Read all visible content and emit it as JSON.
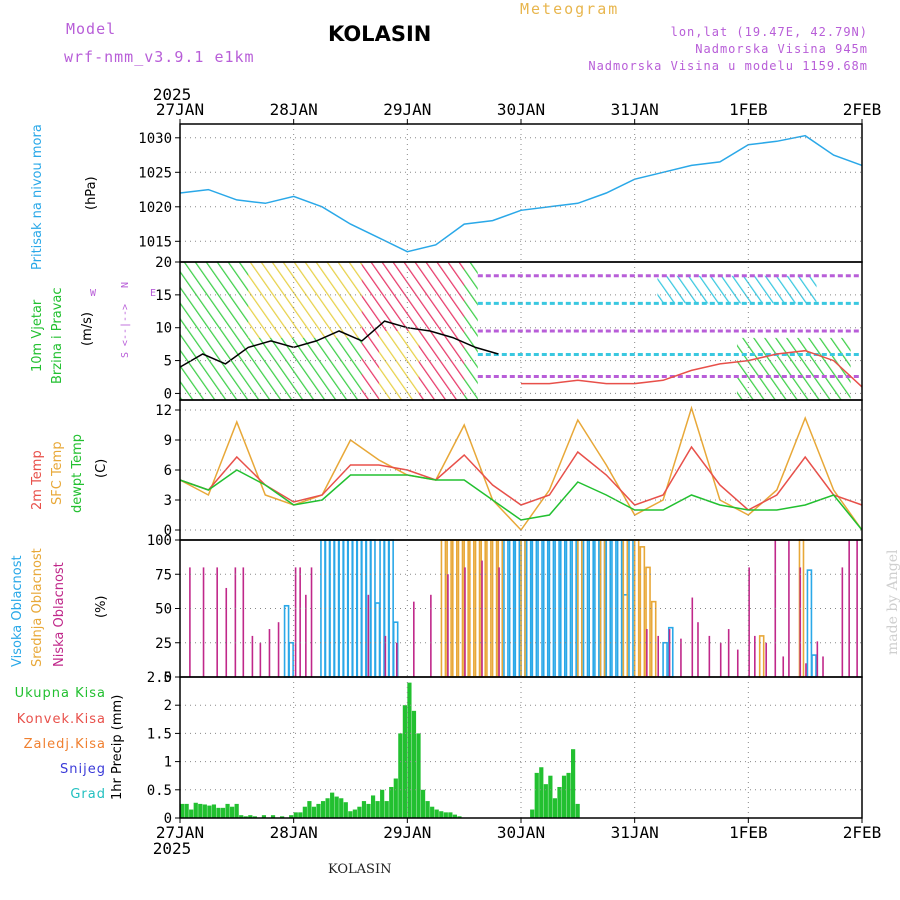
{
  "header": {
    "model_label": "Model",
    "model_name": "wrf-nmm_v3.9.1 e1km",
    "location": "KOLASIN",
    "title": "Meteogram",
    "coords": "lon,lat (19.47E, 42.79N)",
    "elevation": "Nadmorska Visina 945m",
    "model_elevation": "Nadmorska Visina u modelu 1159.68m"
  },
  "footer": {
    "location": "KOLASIN",
    "credit": "made by Angel"
  },
  "colors": {
    "pressure": "#2aa8e8",
    "wind_label": "#22c030",
    "temp": "#e8504a",
    "sfc": "#e8a838",
    "dewpt": "#22c030",
    "high_cloud": "#2aa8e8",
    "mid_cloud": "#e8a838",
    "low_cloud": "#c0288a",
    "total_rain": "#22c030",
    "conv_rain": "#e8504a",
    "freez_rain": "#f08030",
    "snow": "#3a3ad8",
    "hail": "#22c0c0",
    "wind_dir": "#b85ed8"
  },
  "chart_data": [
    {
      "type": "line",
      "panel": "pressure",
      "year": "2025",
      "x_tick_labels": [
        "27JAN",
        "28JAN",
        "29JAN",
        "30JAN",
        "31JAN",
        "1FEB",
        "2FEB"
      ],
      "ylabel_name": "Pritisak na nivou mora",
      "ylabel_unit": "(hPa)",
      "yticks": [
        1015,
        1020,
        1025,
        1030
      ],
      "ylim": [
        1012,
        1032
      ],
      "grid": true,
      "series": [
        {
          "color": "#2aa8e8",
          "x": [
            0,
            0.25,
            0.5,
            0.75,
            1.0,
            1.25,
            1.5,
            1.75,
            2.0,
            2.25,
            2.5,
            2.75,
            3.0,
            3.25,
            3.5,
            3.75,
            4.0,
            4.25,
            4.5,
            4.75,
            5.0,
            5.25,
            5.5,
            5.75,
            6.0
          ],
          "y": [
            1022,
            1022.5,
            1021,
            1020.5,
            1021.5,
            1020,
            1017.5,
            1015.5,
            1013.5,
            1014.5,
            1017.5,
            1018,
            1019.5,
            1020,
            1020.5,
            1022,
            1024,
            1025,
            1026,
            1026.5,
            1029,
            1029.5,
            1030.3,
            1027.5,
            1026
          ]
        }
      ]
    },
    {
      "type": "line",
      "panel": "wind",
      "ylabel_name": "10m Vjetar",
      "ylabel_name2": "Brzina i Pravac",
      "ylabel_unit": "(m/s)",
      "direction_key": [
        "N",
        "W",
        "<--|-->",
        "E",
        "S"
      ],
      "yticks": [
        0,
        5,
        10,
        15,
        20
      ],
      "ylim": [
        -1,
        20
      ],
      "grid": true,
      "series": [
        {
          "color": "#000000",
          "x": [
            0,
            0.2,
            0.4,
            0.6,
            0.8,
            1.0,
            1.2,
            1.4,
            1.6,
            1.8,
            2.0,
            2.2,
            2.4,
            2.6,
            2.8
          ],
          "y": [
            4,
            6,
            4.5,
            7,
            8,
            7,
            8,
            9.5,
            8,
            11,
            10,
            9.5,
            8.5,
            7,
            6
          ]
        },
        {
          "color": "#e8504a",
          "x": [
            3.0,
            3.25,
            3.5,
            3.75,
            4.0,
            4.25,
            4.5,
            4.75,
            5.0,
            5.25,
            5.5,
            5.75,
            6.0
          ],
          "y": [
            1.5,
            1.5,
            2,
            1.5,
            1.5,
            2,
            3.5,
            4.5,
            5,
            6,
            6.5,
            5,
            1
          ]
        }
      ]
    },
    {
      "type": "line",
      "panel": "temperature",
      "ylabel_names": [
        "2m Temp",
        "SFC Temp",
        "dewpt Temp"
      ],
      "ylabel_unit": "(C)",
      "yticks": [
        0,
        3,
        6,
        9,
        12
      ],
      "ylim": [
        -1,
        13
      ],
      "grid": true,
      "series": [
        {
          "color": "#e8a838",
          "x": [
            0,
            0.25,
            0.5,
            0.75,
            1.0,
            1.25,
            1.5,
            1.75,
            2.0,
            2.25,
            2.5,
            2.75,
            3.0,
            3.25,
            3.5,
            3.75,
            4.0,
            4.25,
            4.5,
            4.75,
            5.0,
            5.25,
            5.5,
            5.75,
            6.0
          ],
          "y": [
            5,
            3.5,
            10.8,
            3.5,
            2.5,
            3.5,
            9,
            7,
            5.5,
            5,
            10.5,
            3,
            0,
            4,
            11,
            6.5,
            1.5,
            3,
            12.2,
            3,
            1.5,
            4,
            11.2,
            4,
            0
          ]
        },
        {
          "color": "#e8504a",
          "x": [
            0,
            0.25,
            0.5,
            0.75,
            1.0,
            1.25,
            1.5,
            1.75,
            2.0,
            2.25,
            2.5,
            2.75,
            3.0,
            3.25,
            3.5,
            3.75,
            4.0,
            4.25,
            4.5,
            4.75,
            5.0,
            5.25,
            5.5,
            5.75,
            6.0
          ],
          "y": [
            5,
            4,
            7.3,
            4.5,
            2.8,
            3.5,
            6.5,
            6.5,
            6,
            5,
            7.5,
            4.5,
            2.5,
            3.5,
            7.8,
            5.5,
            2.5,
            3.5,
            8.3,
            4.5,
            2,
            3.5,
            7.3,
            3.5,
            2.5
          ]
        },
        {
          "color": "#22c030",
          "x": [
            0,
            0.25,
            0.5,
            0.75,
            1.0,
            1.25,
            1.5,
            1.75,
            2.0,
            2.25,
            2.5,
            2.75,
            3.0,
            3.25,
            3.5,
            3.75,
            4.0,
            4.25,
            4.5,
            4.75,
            5.0,
            5.25,
            5.5,
            5.75,
            6.0
          ],
          "y": [
            5,
            4,
            6,
            4.5,
            2.5,
            3,
            5.5,
            5.5,
            5.5,
            5,
            5,
            3,
            1,
            1.5,
            4.8,
            3.5,
            2,
            2,
            3.5,
            2.5,
            2,
            2,
            2.5,
            3.5,
            0
          ]
        }
      ]
    },
    {
      "type": "bar",
      "panel": "clouds",
      "ylabel_names": [
        "Visoka Oblacnost",
        "Srednja Oblacnost",
        "Niska Oblacnost"
      ],
      "ylabel_unit": "(%)",
      "yticks": [
        0,
        25,
        50,
        75,
        100
      ],
      "ylim": [
        0,
        100
      ],
      "grid": true,
      "series": [
        {
          "name": "Visoka Oblacnost",
          "color": "#2aa8e8",
          "x": [
            0.92,
            0.96,
            1.24,
            1.28,
            1.32,
            1.36,
            1.4,
            1.44,
            1.48,
            1.52,
            1.56,
            1.6,
            1.64,
            1.68,
            1.72,
            1.76,
            1.8,
            1.84,
            1.88,
            2.85,
            2.9,
            2.95,
            3.0,
            3.05,
            3.1,
            3.15,
            3.2,
            3.25,
            3.3,
            3.35,
            3.4,
            3.45,
            3.5,
            3.55,
            3.6,
            3.65,
            3.7,
            3.75,
            3.8,
            3.85,
            3.9,
            3.95,
            4.25,
            4.3,
            5.52,
            5.56
          ],
          "values": [
            52,
            25,
            100,
            100,
            100,
            100,
            100,
            100,
            100,
            100,
            100,
            100,
            100,
            100,
            54,
            100,
            100,
            100,
            40,
            100,
            100,
            100,
            100,
            100,
            100,
            100,
            100,
            100,
            100,
            100,
            100,
            100,
            100,
            100,
            100,
            100,
            100,
            100,
            100,
            100,
            60,
            100,
            25,
            36,
            78,
            16
          ]
        },
        {
          "name": "Srednja Oblacnost",
          "color": "#e8a838",
          "x": [
            2.3,
            2.35,
            2.4,
            2.45,
            2.5,
            2.55,
            2.6,
            2.65,
            2.7,
            2.75,
            2.8,
            3.0,
            3.5,
            3.7,
            3.9,
            4.0,
            4.05,
            4.1,
            4.15,
            5.1,
            5.45
          ],
          "values": [
            100,
            100,
            100,
            100,
            100,
            100,
            100,
            100,
            100,
            100,
            100,
            100,
            100,
            100,
            100,
            100,
            95,
            80,
            55,
            30,
            100
          ]
        },
        {
          "name": "Niska Oblacnost",
          "color": "#c0288a",
          "x": [
            0.08,
            0.2,
            0.32,
            0.4,
            0.48,
            0.55,
            0.63,
            0.7,
            0.78,
            0.86,
            1.01,
            1.05,
            1.1,
            1.15,
            1.65,
            1.8,
            1.9,
            2.05,
            2.2,
            2.35,
            2.5,
            2.65,
            2.8,
            4.1,
            4.2,
            4.3,
            4.4,
            4.5,
            4.55,
            4.65,
            4.75,
            4.82,
            4.9,
            5.0,
            5.05,
            5.15,
            5.23,
            5.3,
            5.35,
            5.45,
            5.5,
            5.6,
            5.65,
            5.82,
            5.88,
            5.95
          ],
          "values": [
            80,
            80,
            80,
            65,
            80,
            80,
            30,
            25,
            35,
            40,
            80,
            80,
            60,
            80,
            60,
            30,
            25,
            55,
            60,
            75,
            80,
            85,
            80,
            35,
            30,
            35,
            28,
            58,
            40,
            30,
            25,
            35,
            20,
            80,
            30,
            25,
            100,
            15,
            100,
            80,
            10,
            26,
            15,
            80,
            100,
            100
          ]
        }
      ]
    },
    {
      "type": "bar",
      "panel": "precip",
      "ylabel_name": "1hr Precip (mm)",
      "legend": [
        "Ukupna Kisa",
        "Konvek.Kisa",
        "Zaledj.Kisa",
        "Snijeg",
        "Grad"
      ],
      "yticks": [
        0,
        0.5,
        1,
        1.5,
        2,
        2.5
      ],
      "ytick_labels": [
        "0",
        "0.5",
        "1",
        "1.5",
        "2",
        "2.5"
      ],
      "ylim": [
        0,
        2.5
      ],
      "grid": true,
      "year": "2025",
      "x_tick_labels": [
        "27JAN",
        "28JAN",
        "29JAN",
        "30JAN",
        "31JAN",
        "1FEB",
        "2FEB"
      ],
      "series": [
        {
          "name": "Ukupna Kisa",
          "color": "#22c030",
          "x": [
            0.0,
            0.04,
            0.08,
            0.12,
            0.16,
            0.2,
            0.24,
            0.28,
            0.32,
            0.36,
            0.4,
            0.44,
            0.48,
            0.52,
            0.56,
            0.6,
            0.64,
            0.72,
            0.8,
            0.88,
            0.96,
            1.0,
            1.04,
            1.08,
            1.12,
            1.16,
            1.2,
            1.24,
            1.28,
            1.32,
            1.36,
            1.4,
            1.44,
            1.48,
            1.52,
            1.56,
            1.6,
            1.64,
            1.68,
            1.72,
            1.76,
            1.8,
            1.84,
            1.88,
            1.92,
            1.96,
            2.0,
            2.04,
            2.08,
            2.12,
            2.16,
            2.2,
            2.24,
            2.28,
            2.32,
            2.36,
            2.4,
            2.44,
            3.08,
            3.12,
            3.16,
            3.2,
            3.24,
            3.28,
            3.32,
            3.36,
            3.4,
            3.44,
            3.48
          ],
          "values": [
            0.25,
            0.25,
            0.15,
            0.27,
            0.25,
            0.24,
            0.22,
            0.24,
            0.18,
            0.18,
            0.25,
            0.2,
            0.25,
            0.05,
            0.03,
            0.05,
            0.03,
            0.05,
            0.05,
            0.03,
            0.05,
            0.1,
            0.1,
            0.2,
            0.3,
            0.2,
            0.25,
            0.3,
            0.35,
            0.45,
            0.38,
            0.35,
            0.28,
            0.12,
            0.15,
            0.2,
            0.3,
            0.25,
            0.4,
            0.3,
            0.5,
            0.3,
            0.55,
            0.7,
            1.5,
            2.0,
            2.4,
            1.9,
            1.5,
            0.5,
            0.3,
            0.2,
            0.15,
            0.12,
            0.1,
            0.1,
            0.06,
            0.03,
            0.15,
            0.8,
            0.9,
            0.6,
            0.75,
            0.35,
            0.55,
            0.75,
            0.8,
            1.22,
            0.25
          ]
        }
      ]
    }
  ]
}
